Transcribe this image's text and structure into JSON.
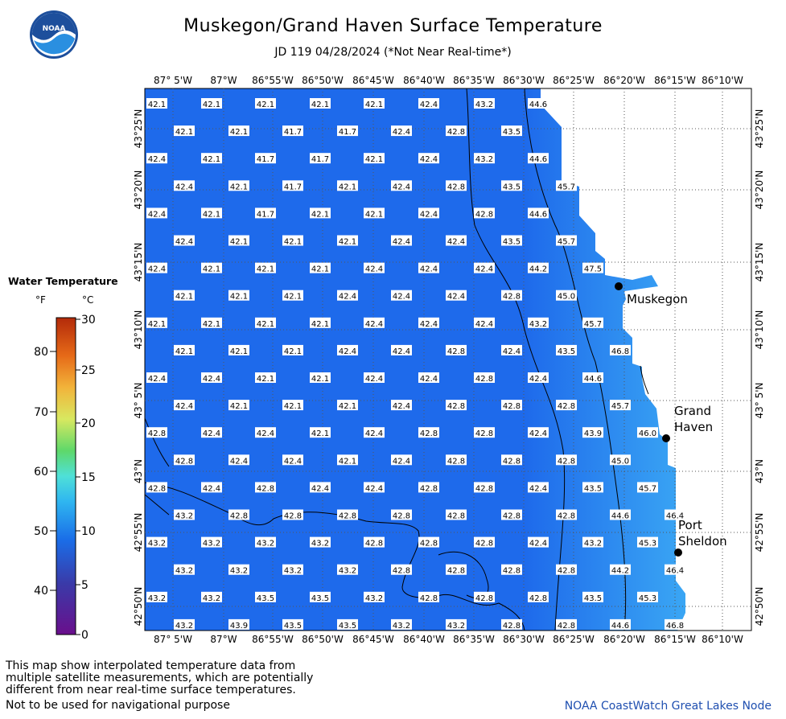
{
  "title": "Muskegon/Grand Haven Surface Temperature",
  "subtitle": "JD 119 04/28/2024 (*Not Near Real-time*)",
  "logo_text": "NOAA",
  "colors": {
    "lake_base": "#1e6aeb",
    "lake_warm": "#3aa6f4",
    "land": "#ffffff",
    "credit": "#1f4fb0"
  },
  "lon_labels": [
    "87° 5'W",
    "87°W",
    "86°55'W",
    "86°50'W",
    "86°45'W",
    "86°40'W",
    "86°35'W",
    "86°30'W",
    "86°25'W",
    "86°20'W",
    "86°15'W",
    "86°10'W"
  ],
  "lat_labels": [
    "43°25'N",
    "43°20'N",
    "43°15'N",
    "43°10'N",
    "43° 5'N",
    "43°N",
    "42°55'N",
    "42°50'N"
  ],
  "cities": [
    {
      "name": "Muskegon",
      "lines": [
        "Muskegon"
      ]
    },
    {
      "name": "Grand Haven",
      "lines": [
        "Grand",
        "Haven"
      ]
    },
    {
      "name": "Port Sheldon",
      "lines": [
        "Port",
        "Sheldon"
      ]
    }
  ],
  "temperature_rows": [
    [
      "42.1",
      "42.1",
      "42.1",
      "42.1",
      "42.1",
      "42.4",
      "43.2",
      "44.6"
    ],
    [
      "42.1",
      "42.1",
      "41.7",
      "41.7",
      "42.4",
      "42.8",
      "43.5"
    ],
    [
      "42.4",
      "42.1",
      "41.7",
      "41.7",
      "42.1",
      "42.4",
      "43.2",
      "44.6"
    ],
    [
      "42.4",
      "42.1",
      "41.7",
      "42.1",
      "42.4",
      "42.8",
      "43.5",
      "45.7"
    ],
    [
      "42.4",
      "42.1",
      "41.7",
      "42.1",
      "42.1",
      "42.4",
      "42.8",
      "44.6"
    ],
    [
      "42.4",
      "42.1",
      "42.1",
      "42.1",
      "42.4",
      "42.4",
      "43.5",
      "45.7"
    ],
    [
      "42.4",
      "42.1",
      "42.1",
      "42.1",
      "42.4",
      "42.4",
      "42.4",
      "44.2",
      "47.5"
    ],
    [
      "42.1",
      "42.1",
      "42.1",
      "42.4",
      "42.4",
      "42.4",
      "42.8",
      "45.0"
    ],
    [
      "42.1",
      "42.1",
      "42.1",
      "42.1",
      "42.4",
      "42.4",
      "42.4",
      "43.2",
      "45.7"
    ],
    [
      "42.1",
      "42.1",
      "42.1",
      "42.4",
      "42.4",
      "42.8",
      "42.4",
      "43.5",
      "46.8"
    ],
    [
      "42.4",
      "42.4",
      "42.1",
      "42.1",
      "42.4",
      "42.4",
      "42.8",
      "42.4",
      "44.6"
    ],
    [
      "42.4",
      "42.1",
      "42.1",
      "42.1",
      "42.4",
      "42.8",
      "42.8",
      "42.8",
      "45.7"
    ],
    [
      "42.8",
      "42.4",
      "42.4",
      "42.1",
      "42.4",
      "42.8",
      "42.8",
      "42.4",
      "43.9",
      "46.0"
    ],
    [
      "42.8",
      "42.4",
      "42.4",
      "42.1",
      "42.4",
      "42.8",
      "42.8",
      "42.8",
      "45.0"
    ],
    [
      "42.8",
      "42.4",
      "42.8",
      "42.4",
      "42.4",
      "42.8",
      "42.8",
      "42.4",
      "43.5",
      "45.7"
    ],
    [
      "43.2",
      "42.8",
      "42.8",
      "42.8",
      "42.8",
      "42.8",
      "42.8",
      "42.8",
      "44.6",
      "46.4"
    ],
    [
      "43.2",
      "43.2",
      "43.2",
      "43.2",
      "42.8",
      "42.8",
      "42.8",
      "42.4",
      "43.2",
      "45.3"
    ],
    [
      "43.2",
      "43.2",
      "43.2",
      "43.2",
      "42.8",
      "42.8",
      "42.8",
      "42.8",
      "44.2",
      "46.4"
    ],
    [
      "43.2",
      "43.2",
      "43.5",
      "43.5",
      "43.2",
      "42.8",
      "42.8",
      "42.8",
      "43.5",
      "45.3"
    ],
    [
      "43.2",
      "43.9",
      "43.5",
      "43.5",
      "43.2",
      "43.2",
      "42.8",
      "42.8",
      "44.6",
      "46.8"
    ]
  ],
  "legend": {
    "title": "Water Temperature",
    "unit_f": "°F",
    "unit_c": "°C",
    "f_ticks": [
      "80",
      "70",
      "60",
      "50",
      "40"
    ],
    "c_ticks": [
      "30",
      "25",
      "20",
      "15",
      "10",
      "5",
      "0"
    ]
  },
  "disclaimer": "This map show interpolated temperature data from\nmultiple satellite measurements, which are potentially\ndifferent from near real-time surface temperatures.",
  "nav_warning": "Not to be used for navigational purpose",
  "credit": "NOAA CoastWatch Great Lakes Node"
}
